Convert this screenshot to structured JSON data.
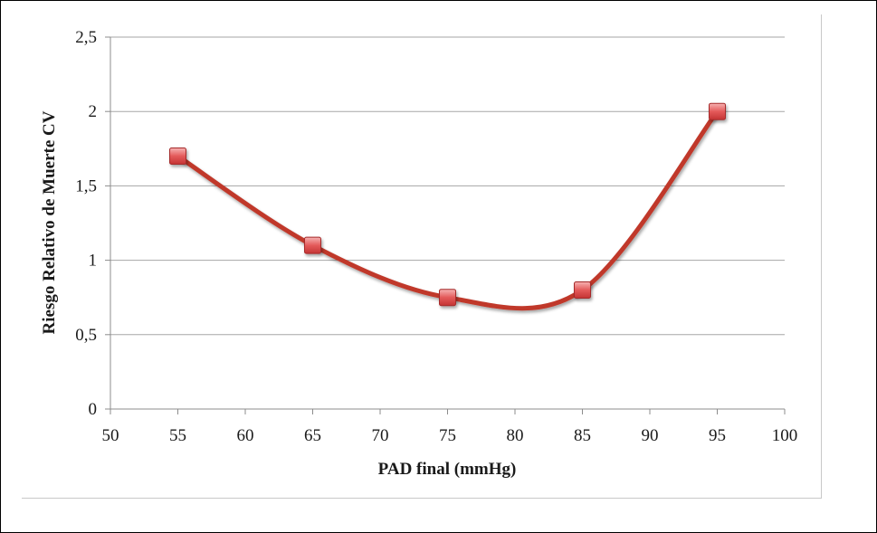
{
  "chart_data": {
    "type": "line",
    "title": "",
    "xlabel": "PAD final (mmHg)",
    "ylabel": "Riesgo Relativo de Muerte CV",
    "xlim": [
      50,
      100
    ],
    "ylim": [
      0,
      2.5
    ],
    "xticks": [
      50,
      55,
      60,
      65,
      70,
      75,
      80,
      85,
      90,
      95,
      100
    ],
    "yticks": [
      0,
      0.5,
      1,
      1.5,
      2,
      2.5
    ],
    "xtick_labels": [
      "50",
      "55",
      "60",
      "65",
      "70",
      "75",
      "80",
      "85",
      "90",
      "95",
      "100"
    ],
    "ytick_labels": [
      "0",
      "0,5",
      "1",
      "1,5",
      "2",
      "2,5"
    ],
    "grid": true,
    "smooth": true,
    "series": [
      {
        "x": [
          55,
          65,
          75,
          85,
          95
        ],
        "y": [
          1.7,
          1.1,
          0.75,
          0.8,
          2.0
        ],
        "color": "#c0392b",
        "marker": "square"
      }
    ]
  }
}
